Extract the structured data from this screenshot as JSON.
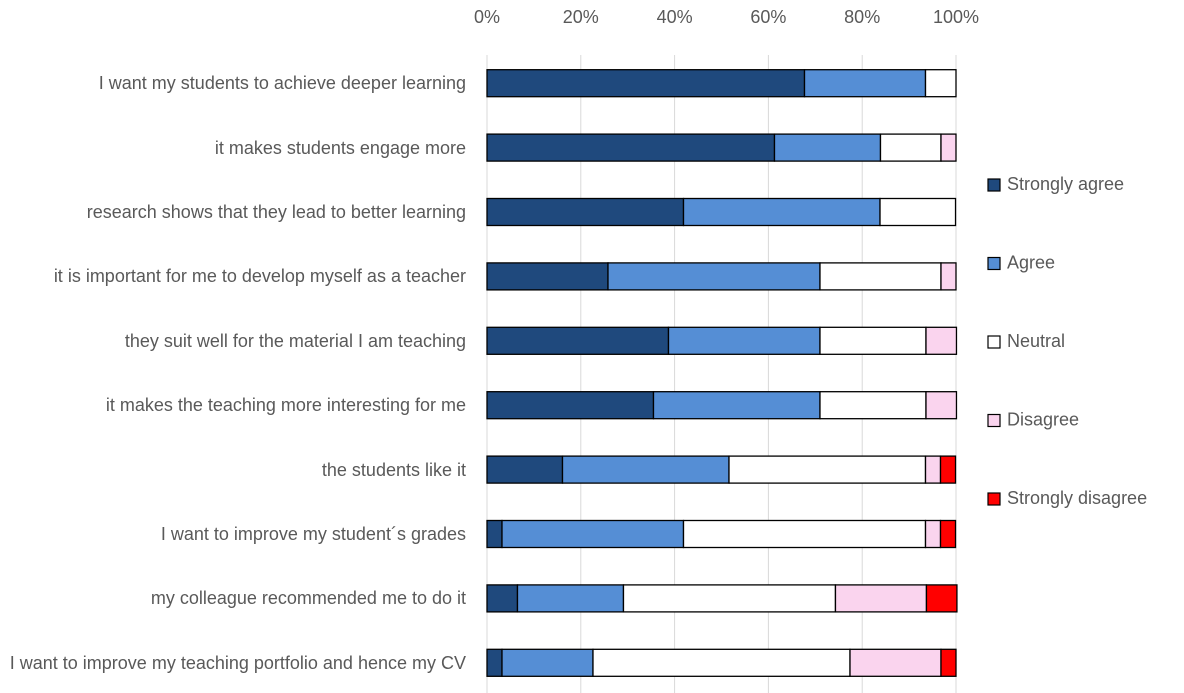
{
  "chart_data": {
    "type": "stacked_bar_horizontal",
    "categories": [
      "I want my students to achieve deeper learning",
      "it makes students engage more",
      "research shows that they lead to better learning",
      "it is important for me to develop myself as a teacher",
      "they suit well for the material I am teaching",
      "it makes the teaching more interesting for me",
      "the students like it",
      "I want to improve my student´s grades",
      "my colleague recommended me to do it",
      "I want to improve my teaching portfolio and hence my CV"
    ],
    "series": [
      {
        "name": "Strongly agree",
        "color": "#1f497d",
        "values": [
          67.7,
          61.3,
          41.9,
          25.8,
          38.7,
          35.5,
          16.1,
          3.2,
          6.5,
          3.2
        ]
      },
      {
        "name": "Agree",
        "color": "#558ed5",
        "values": [
          25.8,
          22.6,
          41.9,
          45.2,
          32.3,
          35.5,
          35.5,
          38.7,
          22.6,
          19.4
        ]
      },
      {
        "name": "Neutral",
        "color": "#ffffff",
        "values": [
          6.5,
          12.9,
          16.1,
          25.8,
          22.6,
          22.6,
          41.9,
          51.6,
          45.2,
          54.8
        ]
      },
      {
        "name": "Disagree",
        "color": "#fad4ee",
        "values": [
          0,
          3.2,
          0,
          3.2,
          6.5,
          6.5,
          3.2,
          3.2,
          19.4,
          19.4
        ]
      },
      {
        "name": "Strongly disagree",
        "color": "#ff0000",
        "values": [
          0,
          0,
          0,
          0,
          0,
          0,
          3.2,
          3.2,
          6.5,
          3.2
        ]
      }
    ],
    "xlim": [
      0,
      100
    ],
    "xticks": [
      {
        "value": 0,
        "label": "0%"
      },
      {
        "value": 20,
        "label": "20%"
      },
      {
        "value": 40,
        "label": "40%"
      },
      {
        "value": 60,
        "label": "60%"
      },
      {
        "value": 80,
        "label": "80%"
      },
      {
        "value": 100,
        "label": "100%"
      }
    ],
    "grid": true,
    "legend": "right"
  }
}
